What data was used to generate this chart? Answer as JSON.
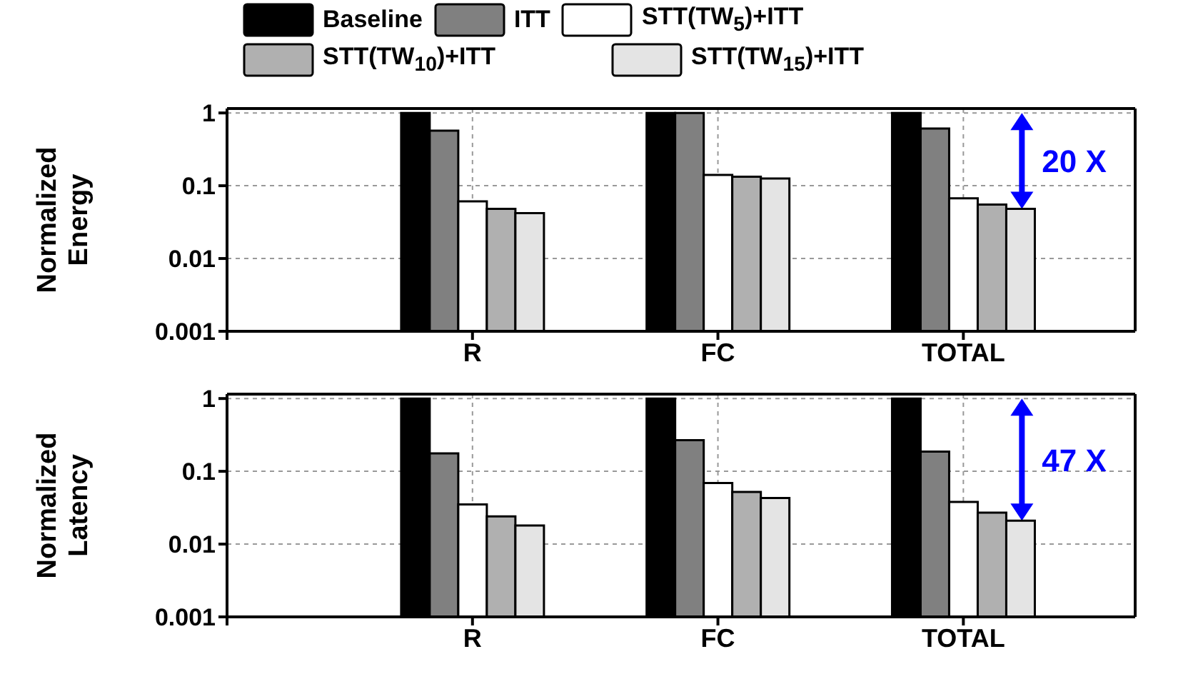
{
  "chart_data": [
    {
      "type": "bar",
      "categories": [
        null,
        "R",
        "FC",
        "TOTAL"
      ],
      "ylabel": "Normalized Energy",
      "log": true,
      "ylim": [
        0.001,
        1.15
      ],
      "yticks": [
        0.001,
        0.01,
        0.1,
        1
      ],
      "grid": true,
      "legend": "top",
      "annotations": [
        "20 X"
      ],
      "series": [
        {
          "name": "Baseline",
          "color": "#000000",
          "values": [
            null,
            1,
            1,
            1
          ]
        },
        {
          "name": "ITT",
          "color": "#808080",
          "values": [
            null,
            0.57,
            1.0,
            0.61
          ]
        },
        {
          "name": "STT(TW$_{5}$)+ITT",
          "color": "#ffffff",
          "values": [
            null,
            0.061,
            0.141,
            0.067
          ]
        },
        {
          "name": "STT(TW$_{10}$)+ITT",
          "color": "#b0b0b0",
          "values": [
            null,
            0.048,
            0.133,
            0.055
          ]
        },
        {
          "name": "STT(TW$_{15}$)+ITT",
          "color": "#e4e4e4",
          "values": [
            null,
            0.042,
            0.126,
            0.048
          ]
        }
      ]
    },
    {
      "type": "bar",
      "categories": [
        null,
        "R",
        "FC",
        "TOTAL"
      ],
      "ylabel": "Normalized Latency",
      "log": true,
      "ylim": [
        0.001,
        1.15
      ],
      "yticks": [
        0.001,
        0.01,
        0.1,
        1
      ],
      "grid": true,
      "annotations": [
        "47 X"
      ],
      "series": [
        {
          "color": "#000000",
          "values": [
            null,
            1,
            1,
            1
          ]
        },
        {
          "color": "#808080",
          "values": [
            null,
            0.176,
            0.268,
            0.187
          ]
        },
        {
          "color": "#ffffff",
          "values": [
            null,
            0.035,
            0.069,
            0.038
          ]
        },
        {
          "color": "#b0b0b0",
          "values": [
            null,
            0.024,
            0.052,
            0.027
          ]
        },
        {
          "color": "#e4e4e4",
          "values": [
            null,
            0.018,
            0.043,
            0.021
          ]
        }
      ]
    }
  ]
}
